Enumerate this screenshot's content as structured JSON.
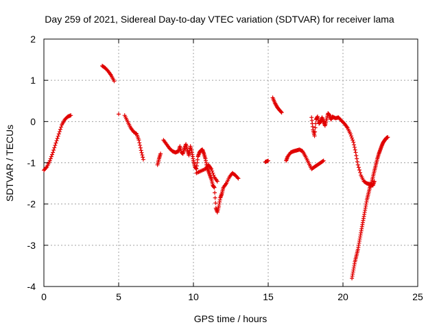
{
  "chart_data": {
    "type": "scatter",
    "title": "Day 259 of 2021, Sidereal Day-to-day VTEC variation (SDTVAR) for receiver lama",
    "xlabel": "GPS time / hours",
    "ylabel": "SDTVAR / TECUs",
    "xlim": [
      0,
      25
    ],
    "ylim": [
      -4,
      2
    ],
    "xticks": [
      0,
      5,
      10,
      15,
      20,
      25
    ],
    "yticks": [
      -4,
      -3,
      -2,
      -1,
      0,
      1,
      2
    ],
    "xtick_labels": [
      "0",
      "5",
      "10",
      "15",
      "20",
      "25"
    ],
    "ytick_labels": [
      "-4",
      "-3",
      "-2",
      "-1",
      "0",
      "1",
      "2"
    ],
    "grid": true,
    "marker": "+",
    "color": "#e00000",
    "series": [
      {
        "name": "SDTVAR",
        "segments": [
          [
            [
              0.0,
              -1.18
            ],
            [
              0.2,
              -1.1
            ],
            [
              0.4,
              -0.95
            ],
            [
              0.6,
              -0.75
            ],
            [
              0.8,
              -0.52
            ],
            [
              1.0,
              -0.3
            ],
            [
              1.2,
              -0.08
            ],
            [
              1.4,
              0.05
            ],
            [
              1.6,
              0.12
            ],
            [
              1.8,
              0.15
            ]
          ],
          [
            [
              3.9,
              1.35
            ],
            [
              4.1,
              1.3
            ],
            [
              4.3,
              1.22
            ],
            [
              4.5,
              1.12
            ],
            [
              4.7,
              0.98
            ]
          ],
          [
            [
              5.0,
              0.18
            ]
          ],
          [
            [
              5.4,
              0.15
            ],
            [
              5.6,
              0.0
            ],
            [
              5.8,
              -0.15
            ],
            [
              6.0,
              -0.25
            ],
            [
              6.2,
              -0.3
            ],
            [
              6.35,
              -0.45
            ],
            [
              6.5,
              -0.7
            ],
            [
              6.65,
              -0.92
            ]
          ],
          [
            [
              7.6,
              -1.05
            ],
            [
              7.7,
              -0.9
            ],
            [
              7.8,
              -0.78
            ]
          ],
          [
            [
              8.0,
              -0.45
            ],
            [
              8.2,
              -0.55
            ],
            [
              8.4,
              -0.65
            ],
            [
              8.6,
              -0.72
            ],
            [
              8.8,
              -0.75
            ],
            [
              9.0,
              -0.72
            ],
            [
              9.1,
              -0.6
            ],
            [
              9.2,
              -0.75
            ],
            [
              9.3,
              -0.78
            ],
            [
              9.4,
              -0.65
            ],
            [
              9.5,
              -0.55
            ],
            [
              9.6,
              -0.7
            ],
            [
              9.7,
              -0.82
            ],
            [
              9.8,
              -0.6
            ],
            [
              9.9,
              -0.75
            ],
            [
              10.0,
              -0.95
            ],
            [
              10.1,
              -1.1
            ],
            [
              10.2,
              -1.15
            ],
            [
              10.3,
              -0.85
            ],
            [
              10.4,
              -0.75
            ],
            [
              10.5,
              -0.7
            ],
            [
              10.6,
              -0.68
            ],
            [
              10.7,
              -0.78
            ],
            [
              10.8,
              -0.9
            ],
            [
              10.9,
              -1.1
            ],
            [
              11.0,
              -1.2
            ],
            [
              11.1,
              -1.3
            ],
            [
              11.2,
              -1.4
            ],
            [
              11.3,
              -1.55
            ],
            [
              11.4,
              -1.6
            ],
            [
              11.5,
              -2.1
            ],
            [
              11.6,
              -2.2
            ],
            [
              11.7,
              -2.05
            ],
            [
              11.8,
              -1.85
            ],
            [
              11.9,
              -1.75
            ],
            [
              12.0,
              -1.6
            ],
            [
              12.2,
              -1.5
            ],
            [
              12.4,
              -1.35
            ],
            [
              12.6,
              -1.25
            ],
            [
              12.8,
              -1.3
            ],
            [
              13.0,
              -1.38
            ]
          ],
          [
            [
              10.2,
              -1.25
            ],
            [
              10.5,
              -1.2
            ],
            [
              10.8,
              -1.15
            ],
            [
              11.0,
              -1.05
            ],
            [
              11.2,
              -1.15
            ],
            [
              11.4,
              -1.35
            ],
            [
              11.6,
              -1.45
            ]
          ],
          [
            [
              14.8,
              -0.98
            ],
            [
              15.0,
              -0.95
            ]
          ],
          [
            [
              15.3,
              0.58
            ],
            [
              15.45,
              0.45
            ],
            [
              15.6,
              0.35
            ],
            [
              15.75,
              0.28
            ],
            [
              15.9,
              0.22
            ]
          ],
          [
            [
              16.2,
              -0.95
            ],
            [
              16.3,
              -0.85
            ],
            [
              16.5,
              -0.75
            ],
            [
              16.7,
              -0.72
            ],
            [
              16.9,
              -0.7
            ],
            [
              17.1,
              -0.68
            ],
            [
              17.3,
              -0.72
            ],
            [
              17.5,
              -0.85
            ],
            [
              17.7,
              -1.0
            ],
            [
              17.9,
              -1.15
            ],
            [
              18.1,
              -1.1
            ],
            [
              18.3,
              -1.05
            ],
            [
              18.5,
              -1.0
            ],
            [
              18.7,
              -0.95
            ]
          ],
          [
            [
              17.9,
              0.1
            ],
            [
              18.0,
              -0.2
            ],
            [
              18.1,
              -0.35
            ],
            [
              18.2,
              0.05
            ],
            [
              18.3,
              0.12
            ],
            [
              18.4,
              -0.05
            ],
            [
              18.5,
              0.0
            ],
            [
              18.6,
              0.1
            ],
            [
              18.7,
              0.0
            ],
            [
              18.8,
              -0.1
            ],
            [
              18.9,
              0.05
            ],
            [
              19.0,
              0.2
            ],
            [
              19.1,
              0.15
            ],
            [
              19.2,
              0.05
            ],
            [
              19.3,
              0.12
            ],
            [
              19.5,
              0.08
            ],
            [
              19.7,
              0.1
            ],
            [
              19.9,
              0.02
            ],
            [
              20.1,
              -0.05
            ],
            [
              20.3,
              -0.15
            ],
            [
              20.5,
              -0.3
            ],
            [
              20.7,
              -0.5
            ],
            [
              20.85,
              -0.75
            ],
            [
              21.0,
              -1.05
            ],
            [
              21.2,
              -1.3
            ],
            [
              21.4,
              -1.45
            ],
            [
              21.6,
              -1.5
            ],
            [
              21.8,
              -1.52
            ],
            [
              22.0,
              -1.55
            ],
            [
              22.1,
              -1.45
            ]
          ],
          [
            [
              20.6,
              -3.8
            ],
            [
              20.7,
              -3.6
            ],
            [
              20.8,
              -3.4
            ],
            [
              20.9,
              -3.25
            ],
            [
              21.0,
              -3.1
            ],
            [
              21.1,
              -2.9
            ],
            [
              21.2,
              -2.7
            ],
            [
              21.3,
              -2.5
            ],
            [
              21.4,
              -2.3
            ],
            [
              21.5,
              -2.1
            ],
            [
              21.6,
              -1.9
            ],
            [
              21.7,
              -1.75
            ],
            [
              21.8,
              -1.6
            ],
            [
              21.9,
              -1.5
            ],
            [
              22.0,
              -1.35
            ],
            [
              22.1,
              -1.2
            ],
            [
              22.2,
              -1.05
            ],
            [
              22.3,
              -0.9
            ],
            [
              22.4,
              -0.78
            ],
            [
              22.5,
              -0.68
            ],
            [
              22.6,
              -0.58
            ],
            [
              22.7,
              -0.5
            ],
            [
              22.8,
              -0.45
            ],
            [
              22.9,
              -0.4
            ],
            [
              23.0,
              -0.38
            ]
          ]
        ]
      }
    ]
  }
}
